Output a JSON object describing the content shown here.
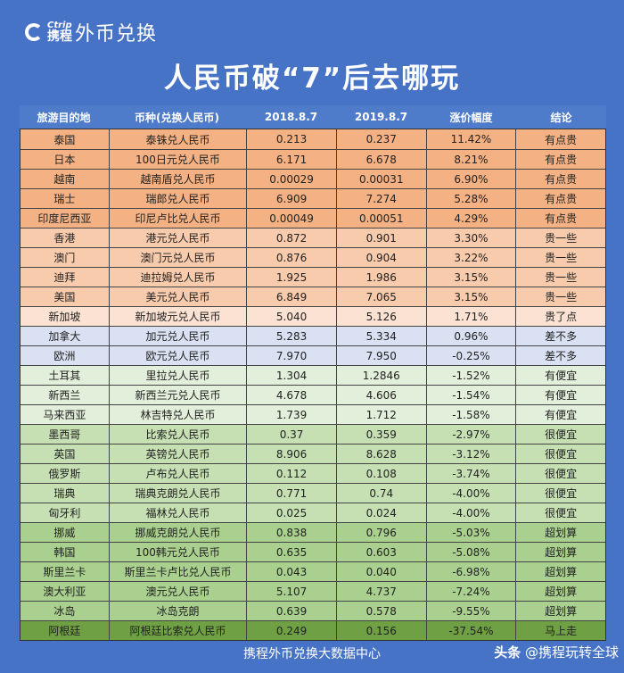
{
  "logo": {
    "brand_en": "Ctrip",
    "brand_cn": "携程",
    "product": "外币兑换"
  },
  "title": "人民币破“7”后去哪玩",
  "colors": {
    "background": "#4773c6",
    "有点贵": "#f4b183",
    "贵一些": "#f8cbad",
    "贵了点": "#fbe2d2",
    "差不多": "#d9e1f2",
    "有便宜": "#e2efda",
    "很便宜": "#c6e0b4",
    "超划算": "#a9d08e",
    "马上走": "#6fa043"
  },
  "chart_data": {
    "type": "table",
    "columns": [
      "旅游目的地",
      "币种(兑换人民币)",
      "2018.8.7",
      "2019.8.7",
      "涨价幅度",
      "结论"
    ],
    "rows": [
      [
        "泰国",
        "泰铢兑人民币",
        "0.213",
        "0.237",
        "11.42%",
        "有点贵"
      ],
      [
        "日本",
        "100日元兑人民币",
        "6.171",
        "6.678",
        "8.21%",
        "有点贵"
      ],
      [
        "越南",
        "越南盾兑人民币",
        "0.00029",
        "0.00031",
        "6.90%",
        "有点贵"
      ],
      [
        "瑞士",
        "瑞郎兑人民币",
        "6.909",
        "7.274",
        "5.28%",
        "有点贵"
      ],
      [
        "印度尼西亚",
        "印尼卢比兑人民币",
        "0.00049",
        "0.00051",
        "4.29%",
        "有点贵"
      ],
      [
        "香港",
        "港元兑人民币",
        "0.872",
        "0.901",
        "3.30%",
        "贵一些"
      ],
      [
        "澳门",
        "澳门元兑人民币",
        "0.876",
        "0.904",
        "3.22%",
        "贵一些"
      ],
      [
        "迪拜",
        "迪拉姆兑人民币",
        "1.925",
        "1.986",
        "3.15%",
        "贵一些"
      ],
      [
        "美国",
        "美元兑人民币",
        "6.849",
        "7.065",
        "3.15%",
        "贵一些"
      ],
      [
        "新加坡",
        "新加坡元兑人民币",
        "5.040",
        "5.126",
        "1.71%",
        "贵了点"
      ],
      [
        "加拿大",
        "加元兑人民币",
        "5.283",
        "5.334",
        "0.96%",
        "差不多"
      ],
      [
        "欧洲",
        "欧元兑人民币",
        "7.970",
        "7.950",
        "-0.25%",
        "差不多"
      ],
      [
        "土耳其",
        "里拉兑人民币",
        "1.304",
        "1.2846",
        "-1.52%",
        "有便宜"
      ],
      [
        "新西兰",
        "新西兰元兑人民币",
        "4.678",
        "4.606",
        "-1.54%",
        "有便宜"
      ],
      [
        "马来西亚",
        "林吉特兑人民币",
        "1.739",
        "1.712",
        "-1.58%",
        "有便宜"
      ],
      [
        "墨西哥",
        "比索兑人民币",
        "0.37",
        "0.359",
        "-2.97%",
        "很便宜"
      ],
      [
        "英国",
        "英镑兑人民币",
        "8.906",
        "8.628",
        "-3.12%",
        "很便宜"
      ],
      [
        "俄罗斯",
        "卢布兑人民币",
        "0.112",
        "0.108",
        "-3.74%",
        "很便宜"
      ],
      [
        "瑞典",
        "瑞典克朗兑人民币",
        "0.771",
        "0.74",
        "-4.00%",
        "很便宜"
      ],
      [
        "匈牙利",
        "福林兑人民币",
        "0.025",
        "0.024",
        "-4.00%",
        "很便宜"
      ],
      [
        "挪威",
        "挪威克朗兑人民币",
        "0.838",
        "0.796",
        "-5.03%",
        "超划算"
      ],
      [
        "韩国",
        "100韩元兑人民币",
        "0.635",
        "0.603",
        "-5.08%",
        "超划算"
      ],
      [
        "斯里兰卡",
        "斯里兰卡卢比兑人民币",
        "0.043",
        "0.040",
        "-6.98%",
        "超划算"
      ],
      [
        "澳大利亚",
        "澳元兑人民币",
        "5.107",
        "4.737",
        "-7.24%",
        "超划算"
      ],
      [
        "冰岛",
        "冰岛克朗",
        "0.639",
        "0.578",
        "-9.55%",
        "超划算"
      ],
      [
        "阿根廷",
        "阿根廷比索兑人民币",
        "0.249",
        "0.156",
        "-37.54%",
        "马上走"
      ]
    ]
  },
  "footer": "携程外币兑换大数据中心",
  "watermark": {
    "site": "头条",
    "handle": "@携程玩转全球"
  }
}
